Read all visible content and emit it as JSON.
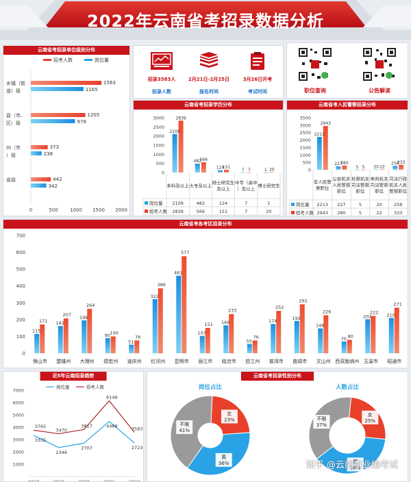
{
  "header": {
    "title": "2022年云南省考招录数据分析"
  },
  "stats": [
    {
      "icon": "presentation-board-icon",
      "line1": "招录3583人",
      "line2": "招录人数"
    },
    {
      "icon": "book-stack-icon",
      "line1": "2月21日-2月25日",
      "line2": "报名时间"
    },
    {
      "icon": "clipboard-icon",
      "line1": "3月26日开考",
      "line2": "考试时间"
    }
  ],
  "qr": [
    {
      "label": "职位查询",
      "icon": "qr-code-icon"
    },
    {
      "label": "公告解读",
      "icon": "qr-code-icon"
    }
  ],
  "watermark": "知乎 @云南事业编考试",
  "colors": {
    "red": "#e8402b",
    "blue": "#29a3e6",
    "gray": "#9a9a9a",
    "brand": "#c9141b"
  },
  "chart_data": [
    {
      "id": "level",
      "type": "bar",
      "orientation": "horizontal",
      "title": "云南省考招录单位级别分布",
      "categories": [
        "乡镇（街道）级",
        "县（市、区）级",
        "州（市）级",
        "省级"
      ],
      "series": [
        {
          "name": "招考人数",
          "values": [
            1563,
            1205,
            373,
            442
          ]
        },
        {
          "name": "岗位量",
          "values": [
            1165,
            978,
            238,
            342
          ]
        }
      ],
      "xlim": [
        0,
        2000
      ],
      "xticks": [
        "0",
        "500",
        "1000",
        "1500",
        "2000"
      ],
      "legend": "top"
    },
    {
      "id": "edu",
      "type": "bar",
      "title": "云南省考招录学历分布",
      "categories": [
        "本科及以上",
        "大专及以上",
        "硕士研究生及以上",
        "中专（高中）及以上",
        "博士研究生"
      ],
      "series": [
        {
          "name": "岗位量",
          "values": [
            2109,
            482,
            124,
            7,
            1
          ]
        },
        {
          "name": "招考人数",
          "values": [
            2839,
            566,
            151,
            7,
            20
          ]
        }
      ],
      "ylim": [
        0,
        3000
      ],
      "yticks": [
        "0",
        "500",
        "1000",
        "1500",
        "2000",
        "2500",
        "3000"
      ],
      "value_labels": [
        [
          "2109",
          "482",
          "124",
          "7",
          "1"
        ],
        [
          "2839",
          "566",
          "151",
          "7",
          "20"
        ]
      ],
      "legend": "table"
    },
    {
      "id": "police",
      "type": "bar",
      "title": "云南省考人民警察招录分布",
      "categories": [
        "非人民警察职位",
        "公安机关人民警察职位",
        "检察机关司法警察职位",
        "审判机关司法警察职位",
        "司法行政机关人民警察职位"
      ],
      "series": [
        {
          "name": "岗位量",
          "values": [
            2213,
            227,
            5,
            20,
            258
          ]
        },
        {
          "name": "招考人数",
          "values": [
            2943,
            280,
            5,
            22,
            333
          ]
        }
      ],
      "ylim": [
        0,
        3500
      ],
      "yticks": [
        "0",
        "500",
        "1000",
        "1500",
        "2000",
        "2500",
        "3000",
        "3500"
      ],
      "value_labels": [
        [
          "2213",
          "227",
          "5",
          "20",
          "258"
        ],
        [
          "2943",
          "280",
          "5",
          "22",
          "333"
        ]
      ],
      "legend": "table"
    },
    {
      "id": "region",
      "type": "bar",
      "title": "云南省考各考区招录分布",
      "categories": [
        "保山市",
        "楚雄州",
        "大理州",
        "德宏州",
        "迪庆州",
        "红河州",
        "昆明市",
        "丽江市",
        "临沧市",
        "怒江州",
        "普洱市",
        "曲靖市",
        "文山州",
        "西双版纳州",
        "玉溪市",
        "昭通市"
      ],
      "series": [
        {
          "name": "岗位量",
          "values": [
            115,
            162,
            196,
            90,
            51,
            322,
            461,
            103,
            166,
            55,
            174,
            192,
            148,
            70,
            202,
            210
          ]
        },
        {
          "name": "招考人数",
          "values": [
            171,
            207,
            264,
            100,
            76,
            386,
            577,
            151,
            233,
            76,
            252,
            291,
            226,
            80,
            222,
            271
          ]
        }
      ],
      "ylim": [
        0,
        700
      ],
      "yticks": [
        "0",
        "100",
        "200",
        "300",
        "400",
        "500",
        "600",
        "700"
      ]
    },
    {
      "id": "trend",
      "type": "line",
      "title": "近5年云南招录趋势",
      "x": [
        "2018",
        "2019",
        "2020",
        "2021",
        "2022"
      ],
      "series": [
        {
          "name": "岗位量",
          "values": [
            3335,
            2346,
            2707,
            4468,
            2723
          ]
        },
        {
          "name": "招考人数",
          "values": [
            3765,
            3470,
            3817,
            6146,
            3583
          ]
        }
      ],
      "ylim": [
        0,
        7000
      ],
      "yticks": [
        "1000",
        "2000",
        "3000",
        "4000",
        "5000",
        "6000",
        "7000"
      ],
      "legend": "top"
    },
    {
      "id": "gender",
      "type": "pie",
      "title": "云南省考招录性别分布",
      "pies": [
        {
          "title": "岗位占比",
          "slices": [
            {
              "label": "女",
              "value": 23
            },
            {
              "label": "男",
              "value": 36
            },
            {
              "label": "不限",
              "value": 41
            }
          ]
        },
        {
          "title": "人数占比",
          "slices": [
            {
              "label": "女",
              "value": 25
            },
            {
              "label": "男",
              "value": 38
            },
            {
              "label": "不限",
              "value": 37
            }
          ]
        }
      ]
    }
  ]
}
